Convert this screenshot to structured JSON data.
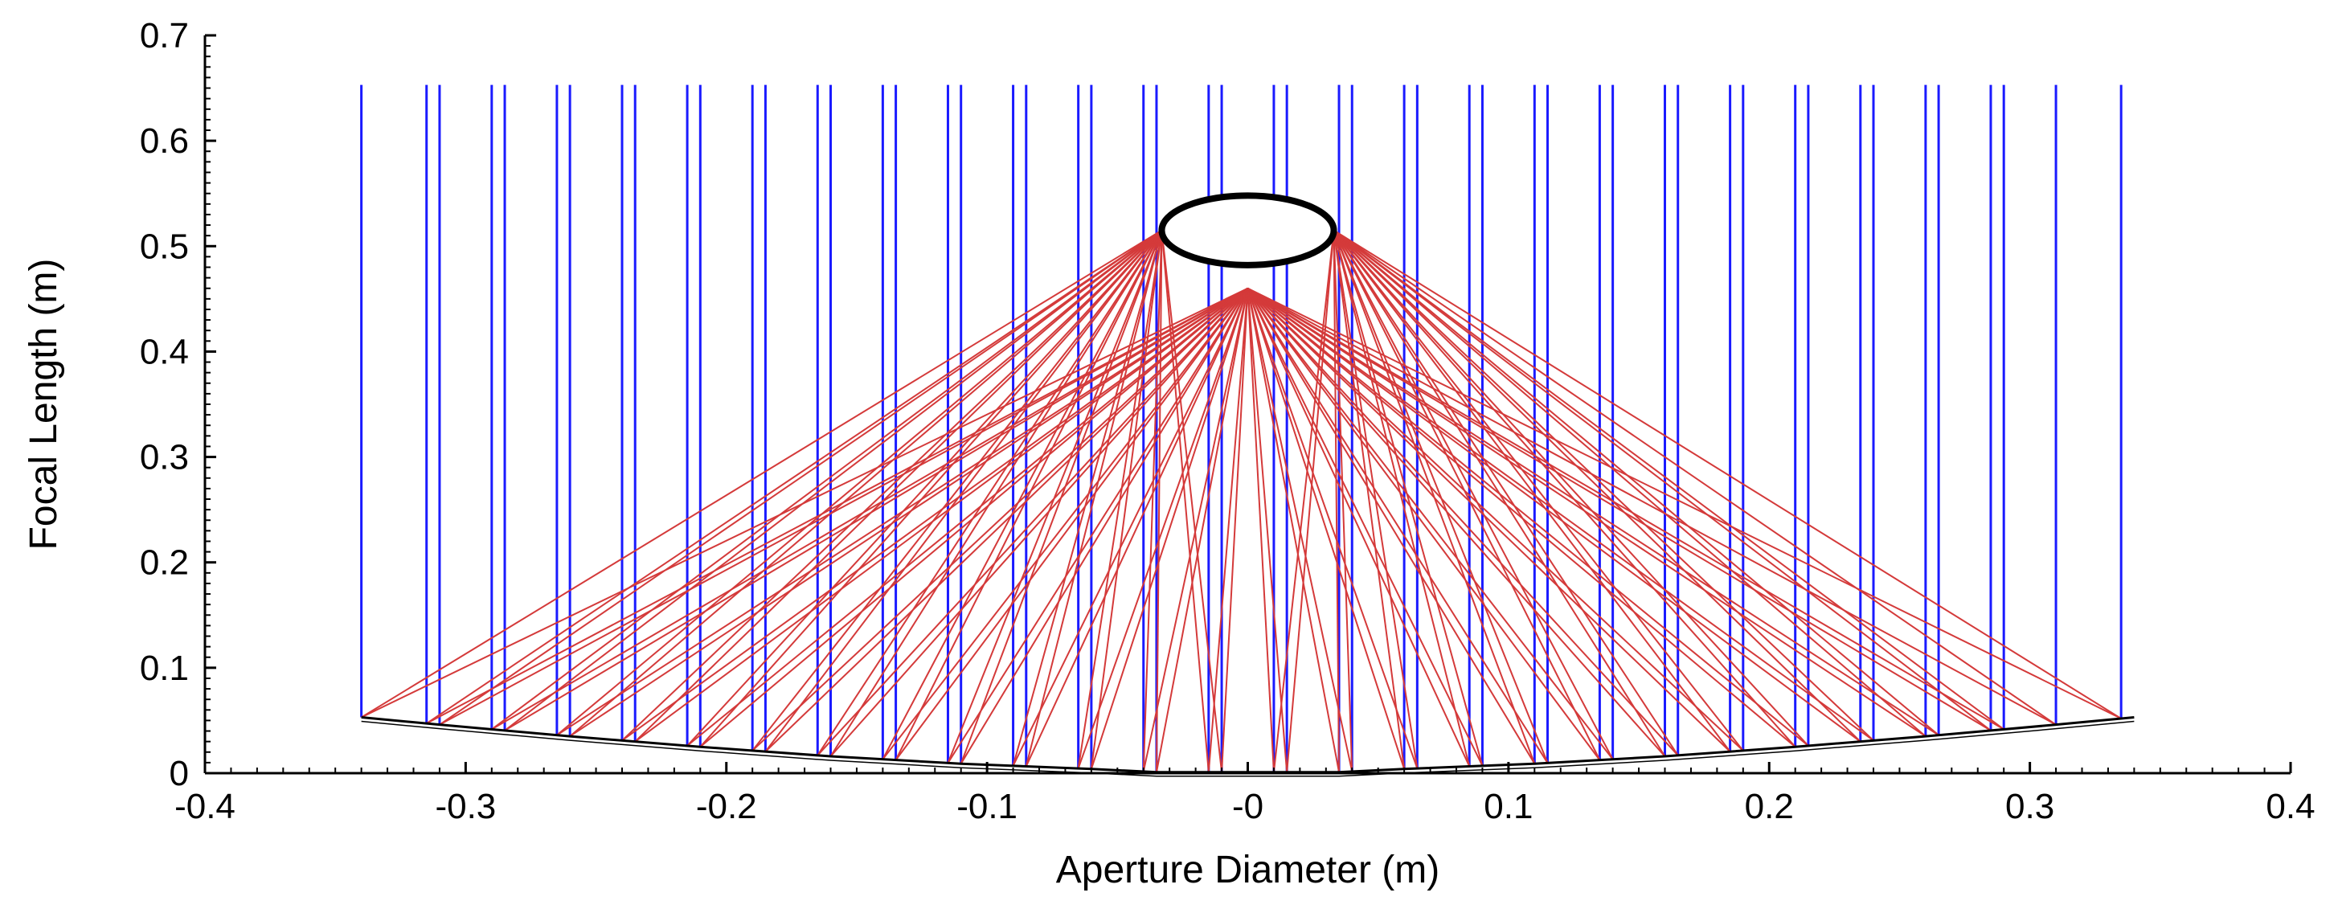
{
  "chart_data": {
    "type": "line",
    "title": "",
    "xlabel": "Aperture Diameter (m)",
    "ylabel": "Focal Length (m)",
    "xlim": [
      -0.4,
      0.4
    ],
    "ylim": [
      0,
      0.7
    ],
    "x_ticks": [
      -0.4,
      -0.3,
      -0.2,
      -0.1,
      0,
      0.1,
      0.2,
      0.3,
      0.4
    ],
    "x_tick_labels": [
      "-0.4",
      "-0.3",
      "-0.2",
      "-0.1",
      "-0",
      "0.1",
      "0.2",
      "0.3",
      "0.4"
    ],
    "y_ticks": [
      0,
      0.1,
      0.2,
      0.3,
      0.4,
      0.5,
      0.6,
      0.7
    ],
    "y_tick_labels": [
      "0",
      "0.1",
      "0.2",
      "0.3",
      "0.4",
      "0.5",
      "0.6",
      "0.7"
    ],
    "grid": false,
    "legend": "none",
    "colors": {
      "incident_rays": "#1a1aff",
      "reflected_rays": "#d43a3a",
      "reflector": "#000000",
      "receiver": "#000000"
    },
    "incident_ray_top_y": 0.653,
    "incident_ray_x": [
      -0.34,
      -0.315,
      -0.31,
      -0.29,
      -0.285,
      -0.265,
      -0.26,
      -0.24,
      -0.235,
      -0.215,
      -0.21,
      -0.19,
      -0.185,
      -0.165,
      -0.16,
      -0.14,
      -0.135,
      -0.115,
      -0.11,
      -0.09,
      -0.085,
      -0.065,
      -0.06,
      -0.04,
      -0.035,
      -0.015,
      -0.01,
      0.01,
      0.015,
      0.035,
      0.04,
      0.06,
      0.065,
      0.085,
      0.09,
      0.11,
      0.115,
      0.135,
      0.14,
      0.16,
      0.165,
      0.185,
      0.19,
      0.21,
      0.215,
      0.235,
      0.24,
      0.26,
      0.265,
      0.285,
      0.29,
      0.31,
      0.335
    ],
    "reflector_profile": {
      "x": [
        -0.34,
        -0.31,
        -0.26,
        -0.21,
        -0.16,
        -0.11,
        -0.06,
        -0.035,
        0.035,
        0.06,
        0.11,
        0.16,
        0.21,
        0.26,
        0.31,
        0.34
      ],
      "y": [
        0.053,
        0.046,
        0.035,
        0.025,
        0.016,
        0.009,
        0.004,
        0.001,
        0.001,
        0.004,
        0.009,
        0.016,
        0.025,
        0.035,
        0.046,
        0.053
      ]
    },
    "receiver": {
      "center": [
        0,
        0.515
      ],
      "radius_x": 0.033,
      "radius_y": 0.033
    },
    "focal_point": [
      0,
      0.46
    ]
  }
}
